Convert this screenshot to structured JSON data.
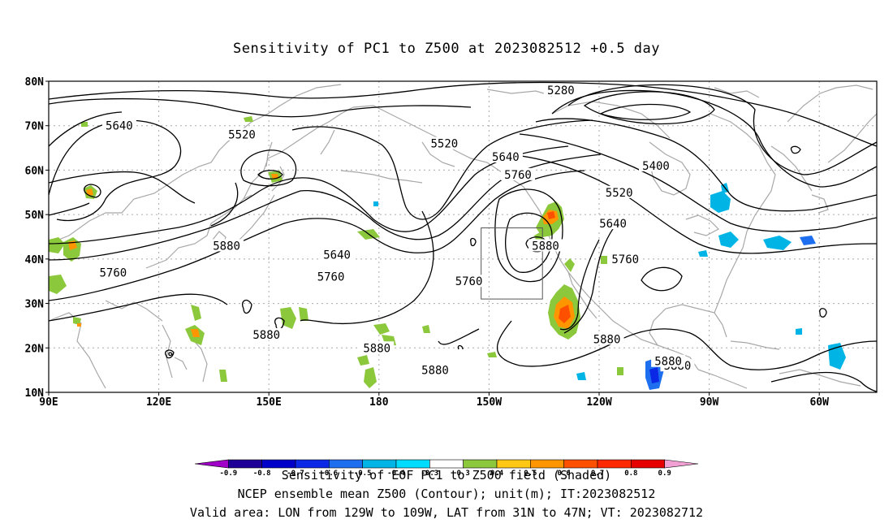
{
  "title": "Sensitivity of PC1 to Z500 at 2023082512 +0.5 day",
  "axes": {
    "lat_labels": [
      "80N",
      "70N",
      "60N",
      "50N",
      "40N",
      "30N",
      "20N",
      "10N"
    ],
    "lon_labels": [
      "90E",
      "120E",
      "150E",
      "180",
      "150W",
      "120W",
      "90W",
      "60W"
    ]
  },
  "contour_labels": [
    {
      "text": "5280",
      "lon": -103,
      "lat": 78
    },
    {
      "text": "5640",
      "lon": 113,
      "lat": 70
    },
    {
      "text": "5520",
      "lon": 153,
      "lat": 68
    },
    {
      "text": "5520",
      "lon": -141,
      "lat": 66
    },
    {
      "text": "5640",
      "lon": -121,
      "lat": 63
    },
    {
      "text": "5760",
      "lon": -117,
      "lat": 59
    },
    {
      "text": "5400",
      "lon": -72,
      "lat": 61
    },
    {
      "text": "5520",
      "lon": -84,
      "lat": 55
    },
    {
      "text": "5640",
      "lon": -86,
      "lat": 48
    },
    {
      "text": "5760",
      "lon": -82,
      "lat": 40
    },
    {
      "text": "5880",
      "lon": -108,
      "lat": 43
    },
    {
      "text": "5880",
      "lon": 148,
      "lat": 43
    },
    {
      "text": "5640",
      "lon": 184,
      "lat": 41
    },
    {
      "text": "5760",
      "lon": 182,
      "lat": 36
    },
    {
      "text": "5760",
      "lon": 111,
      "lat": 37
    },
    {
      "text": "5760",
      "lon": -133,
      "lat": 35
    },
    {
      "text": "5880",
      "lon": 161,
      "lat": 23
    },
    {
      "text": "5880",
      "lon": -163,
      "lat": 20
    },
    {
      "text": "5880",
      "lon": -144,
      "lat": 15
    },
    {
      "text": "5880",
      "lon": -88,
      "lat": 22
    },
    {
      "text": "5880",
      "lon": -65,
      "lat": 16
    },
    {
      "text": "5880",
      "lon": -68,
      "lat": 17
    }
  ],
  "valid_area": {
    "lon_min": -129,
    "lon_max": -109,
    "lat_min": 31,
    "lat_max": 47
  },
  "colorbar": {
    "labels": [
      "-0.9",
      "-0.8",
      "-0.7",
      "-0.6",
      "-0.5",
      "-0.4",
      "-0.3",
      "0.3",
      "0.4",
      "0.5",
      "0.6",
      "0.7",
      "0.8",
      "0.9"
    ],
    "colors": [
      "#a000c8",
      "#1e0096",
      "#0000c8",
      "#0a28e6",
      "#1e6ef0",
      "#00b4e6",
      "#00dcff",
      "#ffffff",
      "#8cc83c",
      "#ffc814",
      "#ff9600",
      "#ff5000",
      "#ff2800",
      "#e60000",
      "#f0a0d2"
    ]
  },
  "footer": {
    "line1": "Sensitivity of EOF PC1 to Z500 field (Shaded)",
    "line2": "NCEP ensemble mean Z500 (Contour); unit(m); IT:2023082512",
    "line3": "Valid area: LON from 129W to 109W, LAT from 31N to 47N; VT: 2023082712"
  }
}
